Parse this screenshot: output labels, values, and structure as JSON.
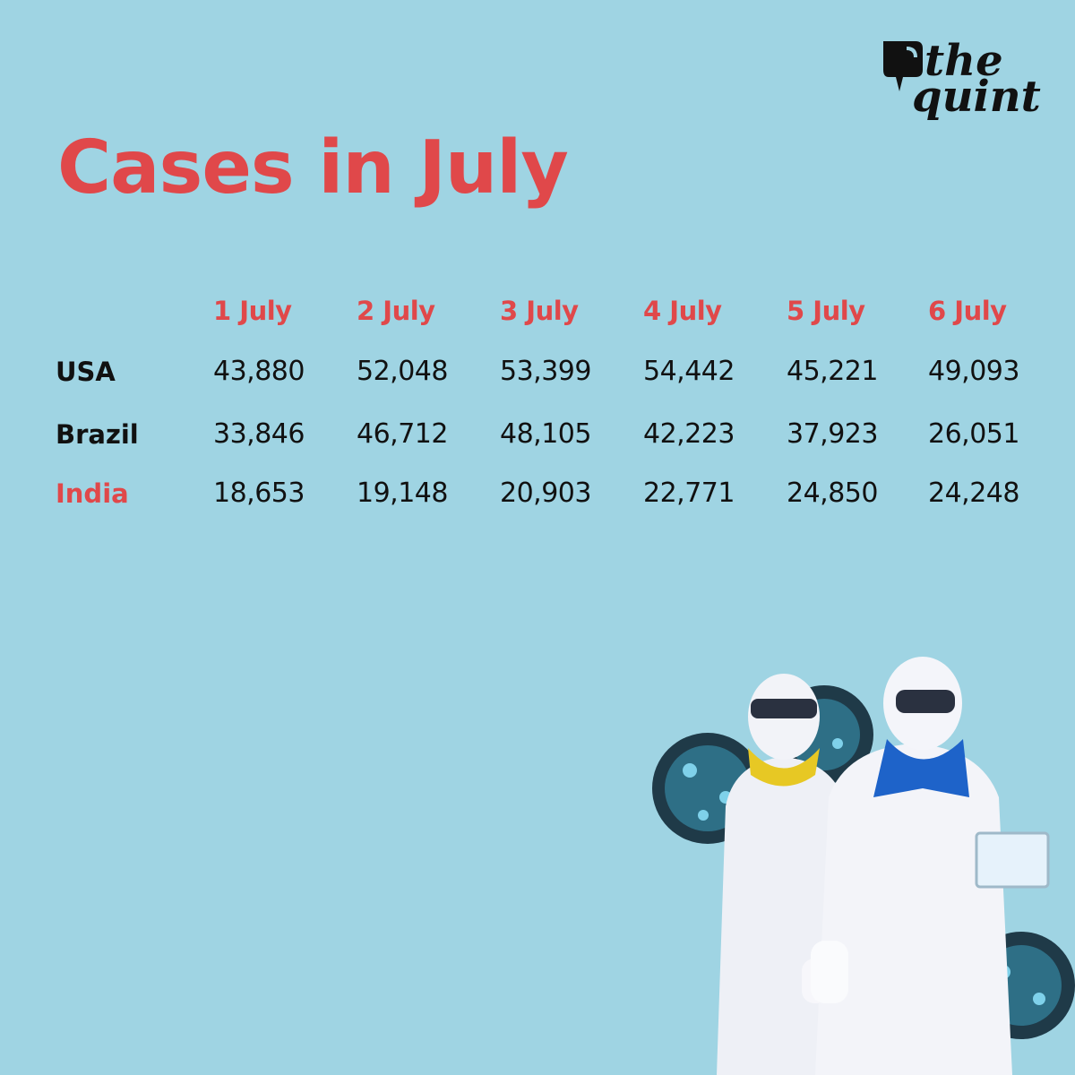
{
  "brand": {
    "line1": "the",
    "line2": "quint"
  },
  "title": "Cases in July",
  "chart_data": {
    "type": "table",
    "title": "Cases in July",
    "columns": [
      "1 July",
      "2 July",
      "3 July",
      "4 July",
      "5 July",
      "6 July"
    ],
    "rows": [
      {
        "label": "USA",
        "values": [
          "43,880",
          "52,048",
          "53,399",
          "54,442",
          "45,221",
          "49,093"
        ]
      },
      {
        "label": "Brazil",
        "values": [
          "33,846",
          "46,712",
          "48,105",
          "42,223",
          "37,923",
          "26,051"
        ]
      },
      {
        "label": "India",
        "values": [
          "18,653",
          "19,148",
          "20,903",
          "22,771",
          "24,850",
          "24,248"
        ]
      }
    ],
    "highlight_row": "India"
  },
  "colors": {
    "background": "#9fd4e3",
    "accent": "#e0484a",
    "text": "#111111"
  }
}
